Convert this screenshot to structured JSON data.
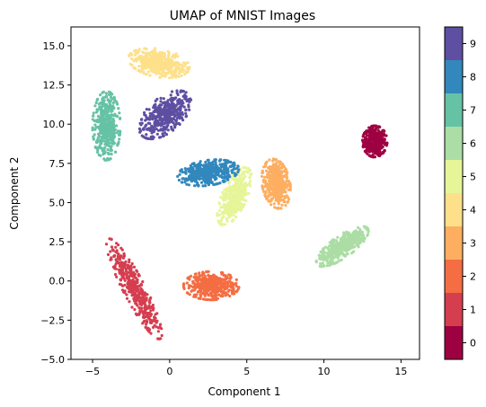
{
  "chart_data": {
    "type": "scatter",
    "title": "UMAP of MNIST Images",
    "xlabel": "Component 1",
    "ylabel": "Component 2",
    "xlim": [
      -6.4,
      16.2
    ],
    "ylim": [
      -5.0,
      16.2
    ],
    "x_ticks": [
      -5,
      0,
      5,
      10,
      15
    ],
    "y_ticks": [
      -5.0,
      -2.5,
      0.0,
      2.5,
      5.0,
      7.5,
      10.0,
      12.5,
      15.0
    ],
    "x_tick_labels": [
      "−5",
      "0",
      "5",
      "10",
      "15"
    ],
    "y_tick_labels": [
      "−5.0",
      "−2.5",
      "0.0",
      "2.5",
      "5.0",
      "7.5",
      "10.0",
      "12.5",
      "15.0"
    ],
    "grid": false,
    "colormap": "Spectral",
    "colorbar": {
      "labels": [
        "0",
        "1",
        "2",
        "3",
        "4",
        "5",
        "6",
        "7",
        "8",
        "9"
      ],
      "colors": [
        "#9e0142",
        "#d53e4f",
        "#f46d43",
        "#fdae61",
        "#fee08b",
        "#e6f598",
        "#abdda4",
        "#66c2a5",
        "#3288bd",
        "#5e4fa2"
      ]
    },
    "clusters": [
      {
        "label": "0",
        "center": [
          13.3,
          8.9
        ],
        "spread": [
          0.8,
          1.0
        ],
        "angle": 0,
        "color": "#9e0142"
      },
      {
        "label": "1",
        "center": [
          -2.3,
          -0.5
        ],
        "spread": [
          0.7,
          3.6
        ],
        "angle": 28,
        "color": "#d53e4f"
      },
      {
        "label": "2",
        "center": [
          2.7,
          -0.3
        ],
        "spread": [
          1.8,
          0.9
        ],
        "angle": 0,
        "color": "#f46d43"
      },
      {
        "label": "3",
        "center": [
          6.9,
          6.2
        ],
        "spread": [
          0.9,
          1.6
        ],
        "angle": 10,
        "color": "#fdae61"
      },
      {
        "label": "4",
        "center": [
          -0.7,
          13.9
        ],
        "spread": [
          2.0,
          0.9
        ],
        "angle": -10,
        "color": "#fee08b"
      },
      {
        "label": "5",
        "center": [
          4.2,
          5.4
        ],
        "spread": [
          0.8,
          2.0
        ],
        "angle": -25,
        "color": "#e6f598"
      },
      {
        "label": "6",
        "center": [
          11.2,
          2.2
        ],
        "spread": [
          2.0,
          0.7
        ],
        "angle": 35,
        "color": "#abdda4"
      },
      {
        "label": "7",
        "center": [
          -4.1,
          9.9
        ],
        "spread": [
          0.9,
          2.2
        ],
        "angle": 0,
        "color": "#66c2a5"
      },
      {
        "label": "8",
        "center": [
          2.5,
          6.9
        ],
        "spread": [
          2.0,
          0.8
        ],
        "angle": 8,
        "color": "#3288bd"
      },
      {
        "label": "9",
        "center": [
          -0.3,
          10.6
        ],
        "spread": [
          1.1,
          2.0
        ],
        "angle": -50,
        "color": "#5e4fa2"
      }
    ]
  }
}
